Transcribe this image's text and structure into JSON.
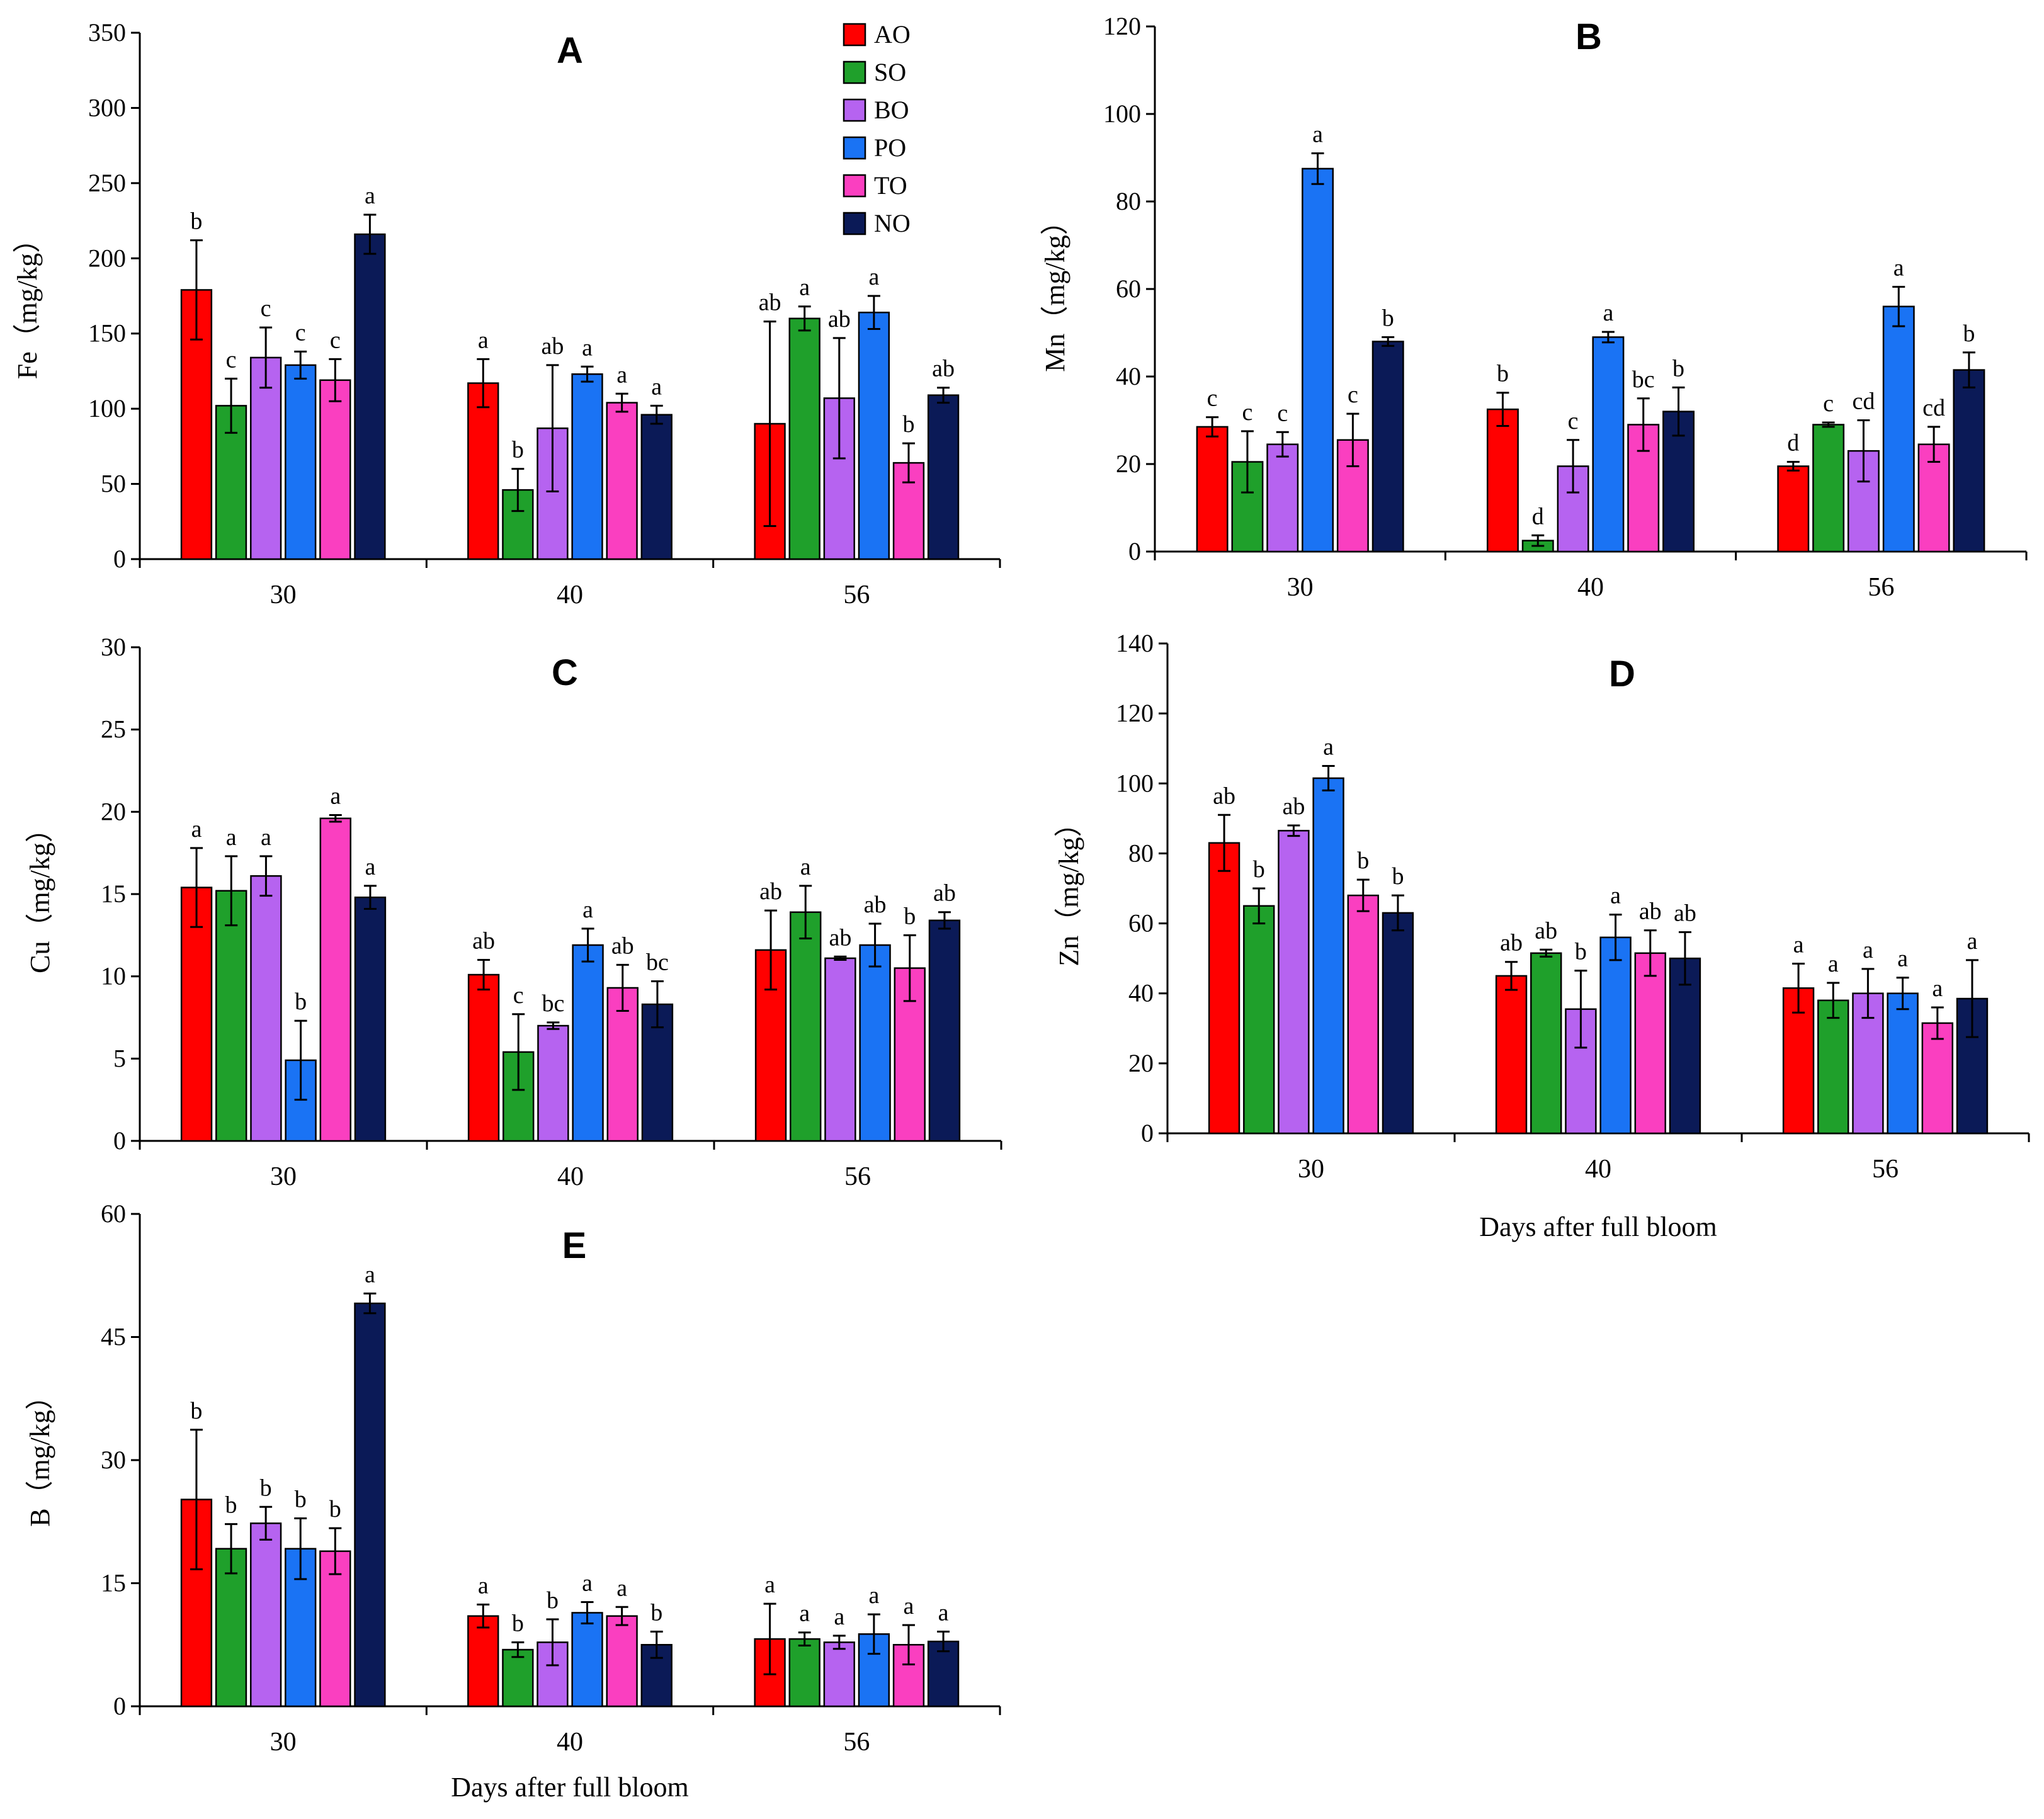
{
  "colors": {
    "AO": "#ff0000",
    "SO": "#1fa02b",
    "BO": "#b663f0",
    "PO": "#1a73f4",
    "TO": "#fa3fc0",
    "NO": "#0b1a57"
  },
  "legend": [
    "AO",
    "SO",
    "BO",
    "PO",
    "TO",
    "NO"
  ],
  "chart_data": [
    {
      "id": "A",
      "type": "bar",
      "title": "A",
      "ylabel": "Fe（mg/kg）",
      "xlabel": "",
      "ylim": [
        0,
        350
      ],
      "yticks": [
        0,
        50,
        100,
        150,
        200,
        250,
        300,
        350
      ],
      "categories": [
        "30",
        "40",
        "56"
      ],
      "legend_position": "top-right",
      "series": [
        {
          "name": "AO",
          "values": [
            179,
            117,
            90
          ],
          "errors": [
            33,
            16,
            68
          ],
          "letters": [
            "b",
            "a",
            "ab"
          ]
        },
        {
          "name": "SO",
          "values": [
            102,
            46,
            160
          ],
          "errors": [
            18,
            14,
            8
          ],
          "letters": [
            "c",
            "b",
            "a"
          ]
        },
        {
          "name": "BO",
          "values": [
            134,
            87,
            107
          ],
          "errors": [
            20,
            42,
            40
          ],
          "letters": [
            "c",
            "ab",
            "ab"
          ]
        },
        {
          "name": "PO",
          "values": [
            129,
            123,
            164
          ],
          "errors": [
            9,
            5,
            11
          ],
          "letters": [
            "c",
            "a",
            "a"
          ]
        },
        {
          "name": "TO",
          "values": [
            119,
            104,
            64
          ],
          "errors": [
            14,
            6,
            13
          ],
          "letters": [
            "c",
            "a",
            "b"
          ]
        },
        {
          "name": "NO",
          "values": [
            216,
            96,
            109
          ],
          "errors": [
            13,
            6,
            5
          ],
          "letters": [
            "a",
            "a",
            "ab"
          ]
        }
      ]
    },
    {
      "id": "B",
      "type": "bar",
      "title": "B",
      "ylabel": "Mn（mg/kg）",
      "xlabel": "",
      "ylim": [
        0,
        120
      ],
      "yticks": [
        0,
        20,
        40,
        60,
        80,
        100,
        120
      ],
      "categories": [
        "30",
        "40",
        "56"
      ],
      "series": [
        {
          "name": "AO",
          "values": [
            28.5,
            32.5,
            19.5
          ],
          "errors": [
            2.2,
            3.8,
            1.0
          ],
          "letters": [
            "c",
            "b",
            "d"
          ]
        },
        {
          "name": "SO",
          "values": [
            20.5,
            2.5,
            29
          ],
          "errors": [
            7.0,
            1.2,
            0.5
          ],
          "letters": [
            "c",
            "d",
            "c"
          ]
        },
        {
          "name": "BO",
          "values": [
            24.5,
            19.5,
            23
          ],
          "errors": [
            2.8,
            6.0,
            7.0
          ],
          "letters": [
            "c",
            "c",
            "cd"
          ]
        },
        {
          "name": "PO",
          "values": [
            87.5,
            49,
            56
          ],
          "errors": [
            3.5,
            1.2,
            4.5
          ],
          "letters": [
            "a",
            "a",
            "a"
          ]
        },
        {
          "name": "TO",
          "values": [
            25.5,
            29,
            24.5
          ],
          "errors": [
            6.0,
            6.0,
            4.0
          ],
          "letters": [
            "c",
            "bc",
            "cd"
          ]
        },
        {
          "name": "NO",
          "values": [
            48,
            32,
            41.5
          ],
          "errors": [
            1.0,
            5.5,
            4.0
          ],
          "letters": [
            "b",
            "b",
            "b"
          ]
        }
      ]
    },
    {
      "id": "C",
      "type": "bar",
      "title": "C",
      "ylabel": "Cu（mg/kg）",
      "xlabel": "",
      "ylim": [
        0,
        30
      ],
      "yticks": [
        0,
        5,
        10,
        15,
        20,
        25,
        30
      ],
      "categories": [
        "30",
        "40",
        "56"
      ],
      "series": [
        {
          "name": "AO",
          "values": [
            15.4,
            10.1,
            11.6
          ],
          "errors": [
            2.4,
            0.9,
            2.4
          ],
          "letters": [
            "a",
            "ab",
            "ab"
          ]
        },
        {
          "name": "SO",
          "values": [
            15.2,
            5.4,
            13.9
          ],
          "errors": [
            2.1,
            2.3,
            1.6
          ],
          "letters": [
            "a",
            "c",
            "a"
          ]
        },
        {
          "name": "BO",
          "values": [
            16.1,
            7.0,
            11.1
          ],
          "errors": [
            1.2,
            0.2,
            0.1
          ],
          "letters": [
            "a",
            "bc",
            "ab"
          ]
        },
        {
          "name": "PO",
          "values": [
            4.9,
            11.9,
            11.9
          ],
          "errors": [
            2.4,
            1.0,
            1.3
          ],
          "letters": [
            "b",
            "a",
            "ab"
          ]
        },
        {
          "name": "TO",
          "values": [
            19.6,
            9.3,
            10.5
          ],
          "errors": [
            0.2,
            1.4,
            2.0
          ],
          "letters": [
            "a",
            "ab",
            "b"
          ]
        },
        {
          "name": "NO",
          "values": [
            14.8,
            8.3,
            13.4
          ],
          "errors": [
            0.7,
            1.4,
            0.5
          ],
          "letters": [
            "a",
            "bc",
            "ab"
          ]
        }
      ]
    },
    {
      "id": "D",
      "type": "bar",
      "title": "D",
      "ylabel": "Zn（mg/kg）",
      "xlabel": "Days after full bloom",
      "ylim": [
        0,
        140
      ],
      "yticks": [
        0,
        20,
        40,
        60,
        80,
        100,
        120,
        140
      ],
      "categories": [
        "30",
        "40",
        "56"
      ],
      "series": [
        {
          "name": "AO",
          "values": [
            83,
            45,
            41.5
          ],
          "errors": [
            8.0,
            4.0,
            7.0
          ],
          "letters": [
            "ab",
            "ab",
            "a"
          ]
        },
        {
          "name": "SO",
          "values": [
            65,
            51.5,
            38
          ],
          "errors": [
            5.0,
            1.0,
            5.0
          ],
          "letters": [
            "b",
            "ab",
            "a"
          ]
        },
        {
          "name": "BO",
          "values": [
            86.5,
            35.5,
            40
          ],
          "errors": [
            1.5,
            11.0,
            7.0
          ],
          "letters": [
            "ab",
            "b",
            "a"
          ]
        },
        {
          "name": "PO",
          "values": [
            101.5,
            56,
            40
          ],
          "errors": [
            3.5,
            6.5,
            4.5
          ],
          "letters": [
            "a",
            "a",
            "a"
          ]
        },
        {
          "name": "TO",
          "values": [
            68,
            51.5,
            31.5
          ],
          "errors": [
            4.5,
            6.5,
            4.5
          ],
          "letters": [
            "b",
            "ab",
            "a"
          ]
        },
        {
          "name": "NO",
          "values": [
            63,
            50,
            38.5
          ],
          "errors": [
            5.0,
            7.5,
            11.0
          ],
          "letters": [
            "b",
            "ab",
            "a"
          ]
        }
      ]
    },
    {
      "id": "E",
      "type": "bar",
      "title": "E",
      "ylabel": "B（mg/kg）",
      "xlabel": "Days after full bloom",
      "ylim": [
        0,
        60
      ],
      "yticks": [
        0,
        15,
        30,
        45,
        60
      ],
      "categories": [
        "30",
        "40",
        "56"
      ],
      "series": [
        {
          "name": "AO",
          "values": [
            25.2,
            11.0,
            8.2
          ],
          "errors": [
            8.5,
            1.4,
            4.3
          ],
          "letters": [
            "b",
            "a",
            "a"
          ]
        },
        {
          "name": "SO",
          "values": [
            19.2,
            6.9,
            8.2
          ],
          "errors": [
            3.0,
            0.9,
            0.8
          ],
          "letters": [
            "b",
            "b",
            "a"
          ]
        },
        {
          "name": "BO",
          "values": [
            22.3,
            7.8,
            7.8
          ],
          "errors": [
            2.0,
            2.8,
            0.8
          ],
          "letters": [
            "b",
            "b",
            "a"
          ]
        },
        {
          "name": "PO",
          "values": [
            19.2,
            11.4,
            8.8
          ],
          "errors": [
            3.7,
            1.3,
            2.4
          ],
          "letters": [
            "b",
            "a",
            "a"
          ]
        },
        {
          "name": "TO",
          "values": [
            18.9,
            11.0,
            7.5
          ],
          "errors": [
            2.8,
            1.1,
            2.4
          ],
          "letters": [
            "b",
            "a",
            "a"
          ]
        },
        {
          "name": "NO",
          "values": [
            49.1,
            7.5,
            7.9
          ],
          "errors": [
            1.2,
            1.6,
            1.2
          ],
          "letters": [
            "a",
            "b",
            "a"
          ]
        }
      ]
    }
  ]
}
